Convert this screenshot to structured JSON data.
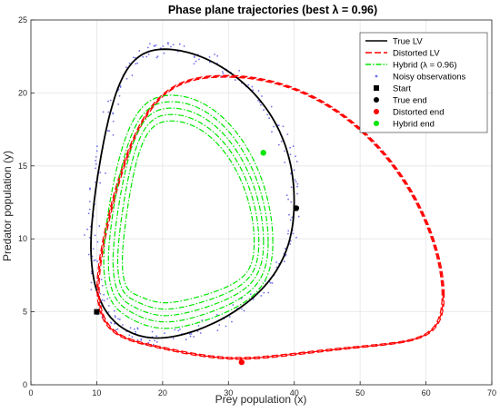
{
  "chart_data": {
    "type": "line",
    "title": "Phase plane trajectories (best λ = 0.96)",
    "xlabel": "Prey population (x)",
    "ylabel": "Predator population (y)",
    "xlim": [
      0,
      70
    ],
    "ylim": [
      0,
      25
    ],
    "xticks": [
      "0",
      "10",
      "20",
      "30",
      "40",
      "50",
      "60",
      "70"
    ],
    "yticks": [
      "0",
      "5",
      "10",
      "15",
      "20",
      "25"
    ],
    "grid": true,
    "legend_position": "top-right",
    "colors": {
      "true_lv": "#000000",
      "distorted_lv": "#ff0000",
      "hybrid": "#00e600",
      "observations": "#6f6fe8",
      "start": "#000000"
    },
    "series": [
      {
        "name": "True LV",
        "style": "solid",
        "loop": {
          "xmin": 8.8,
          "xmax": 40.3,
          "ymin": 3.0,
          "ymax": 23.2,
          "x_at_ymax": 19.8,
          "x_at_ymin": 18.5,
          "y_at_xmax": 12.5,
          "y_at_xmin": 9.0
        },
        "start": [
          10,
          5
        ],
        "end": [
          40.3,
          12.1
        ],
        "cycles": 1
      },
      {
        "name": "Distorted LV",
        "style": "dashed",
        "loop": {
          "xmin": 9.5,
          "xmax": 63.3,
          "ymin": 1.55,
          "ymax": 21.4,
          "x_at_ymax": 28.5,
          "x_at_ymin": 31.0,
          "y_at_xmax": 5.4,
          "y_at_xmin": 6.0
        },
        "start": [
          10,
          5
        ],
        "end": [
          32,
          1.55
        ],
        "cycles": 3
      },
      {
        "name": "Hybrid (λ = 0.96)",
        "style": "dashdot",
        "loop": {
          "xmin": 10.8,
          "xmax": 37.0,
          "ymin": 3.7,
          "ymax": 20.0,
          "x_at_ymax": 21.0,
          "x_at_ymin": 20.0,
          "y_at_xmax": 9.5,
          "y_at_xmin": 8.0
        },
        "start": [
          10,
          5
        ],
        "end": [
          35.3,
          15.9
        ],
        "cycles": 5
      },
      {
        "name": "Noisy observations",
        "style": "points"
      }
    ],
    "markers": [
      {
        "name": "Start",
        "x": 10,
        "y": 5,
        "shape": "square",
        "color": "#000000"
      },
      {
        "name": "True end",
        "x": 40.3,
        "y": 12.1,
        "shape": "circle",
        "color": "#000000"
      },
      {
        "name": "Distorted end",
        "x": 32,
        "y": 1.55,
        "shape": "circle",
        "color": "#ff0000"
      },
      {
        "name": "Hybrid end",
        "x": 35.3,
        "y": 15.9,
        "shape": "circle",
        "color": "#00e600"
      }
    ]
  }
}
